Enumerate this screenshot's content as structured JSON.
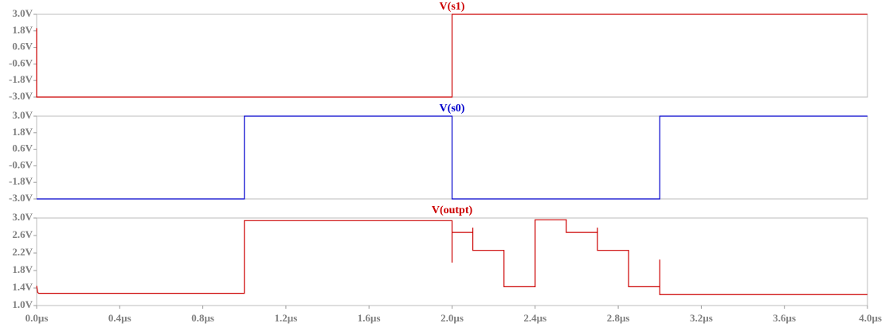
{
  "background": "#ffffff",
  "frame_color": "#bdbdbd",
  "tick_label_color": "#808080",
  "chart_data": [
    {
      "type": "line",
      "title": "V(s1)",
      "title_color": "#cc0000",
      "color": "#cc0000",
      "ylim": [
        -3.0,
        3.0
      ],
      "yticks": [
        "3.0V",
        "1.8V",
        "0.6V",
        "-0.6V",
        "-1.8V",
        "-3.0V"
      ],
      "ytick_values": [
        3.0,
        1.8,
        0.6,
        -0.6,
        -1.8,
        -3.0
      ],
      "xlim": [
        0,
        4.0
      ],
      "show_xticks": false,
      "series": [
        {
          "x": [
            0,
            0,
            0.005,
            2.0,
            2.0,
            4.0
          ],
          "y": [
            2.0,
            -3.0,
            -3.0,
            -3.0,
            3.0,
            3.0
          ]
        }
      ]
    },
    {
      "type": "line",
      "title": "V(s0)",
      "title_color": "#0000cc",
      "color": "#0000cc",
      "ylim": [
        -3.0,
        3.0
      ],
      "yticks": [
        "3.0V",
        "1.8V",
        "0.6V",
        "-0.6V",
        "-1.8V",
        "-3.0V"
      ],
      "ytick_values": [
        3.0,
        1.8,
        0.6,
        -0.6,
        -1.8,
        -3.0
      ],
      "xlim": [
        0,
        4.0
      ],
      "show_xticks": false,
      "series": [
        {
          "x": [
            0,
            1.0,
            1.0,
            2.0,
            2.0,
            3.0,
            3.0,
            4.0
          ],
          "y": [
            -3.0,
            -3.0,
            3.0,
            3.0,
            -3.0,
            -3.0,
            3.0,
            3.0
          ]
        }
      ]
    },
    {
      "type": "line",
      "title": "V(outpt)",
      "title_color": "#cc0000",
      "color": "#cc0000",
      "ylim": [
        1.0,
        3.0
      ],
      "yticks": [
        "3.0V",
        "2.6V",
        "2.2V",
        "1.8V",
        "1.4V",
        "1.0V"
      ],
      "ytick_values": [
        3.0,
        2.6,
        2.2,
        1.8,
        1.4,
        1.0
      ],
      "xlim": [
        0,
        4.0
      ],
      "show_xticks": true,
      "xticks": [
        "0.0µs",
        "0.4µs",
        "0.8µs",
        "1.2µs",
        "1.6µs",
        "2.0µs",
        "2.4µs",
        "2.8µs",
        "3.2µs",
        "3.6µs",
        "4.0µs"
      ],
      "xtick_values": [
        0,
        0.4,
        0.8,
        1.2,
        1.6,
        2.0,
        2.4,
        2.8,
        3.2,
        3.6,
        4.0
      ],
      "series": [
        {
          "x": [
            0,
            0.005,
            0.01,
            1.0,
            1.0,
            2.0,
            2.0,
            2.0,
            2.0,
            2.1,
            2.1,
            2.1,
            2.25,
            2.25,
            2.4,
            2.4,
            2.55,
            2.55,
            2.7,
            2.7,
            2.7,
            2.85,
            2.85,
            3.0,
            3.0,
            3.0,
            4.0
          ],
          "y": [
            1.45,
            1.3,
            1.28,
            1.28,
            2.94,
            2.94,
            1.98,
            2.67,
            2.67,
            2.67,
            2.78,
            2.26,
            2.26,
            1.43,
            1.43,
            2.96,
            2.96,
            2.67,
            2.67,
            2.78,
            2.26,
            2.26,
            1.43,
            1.43,
            2.05,
            1.25,
            1.25
          ]
        }
      ]
    }
  ]
}
